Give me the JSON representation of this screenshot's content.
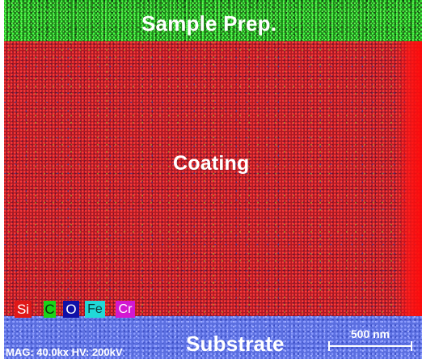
{
  "regions": {
    "sample_prep": "Sample Prep.",
    "coating": "Coating",
    "substrate": "Substrate"
  },
  "legend": [
    {
      "symbol": "Si",
      "color": "#e01818"
    },
    {
      "symbol": "C",
      "color": "#19d419"
    },
    {
      "symbol": "O",
      "color": "#1010a8"
    },
    {
      "symbol": "Fe",
      "color": "#20d8d8"
    },
    {
      "symbol": "Cr",
      "color": "#d218d2"
    }
  ],
  "meta": "MAG: 40.0kx  HV: 200kV",
  "scale_bar": "500 nm"
}
